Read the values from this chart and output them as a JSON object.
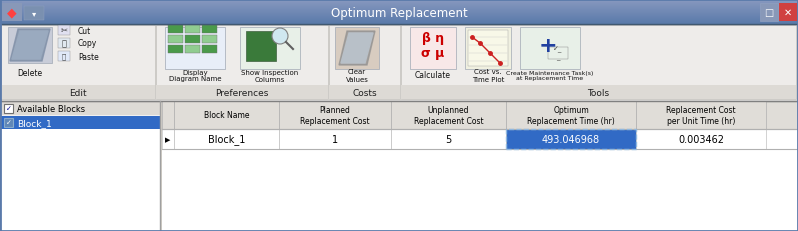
{
  "title": "Optimum Replacement",
  "title_bar_color_top": "#6a8fbf",
  "title_bar_color_bot": "#4a6ea0",
  "title_text_color": "#ffffff",
  "window_bg": "#d4d0c8",
  "ribbon_bg": "#e8e8e8",
  "edit_group_label": "Edit",
  "pref_group_label": "Preferences",
  "costs_group_label": "Costs",
  "tools_group_label": "Tools",
  "avail_blocks_label": "Available Blocks",
  "block1_label": "Block_1",
  "block1_selected_bg": "#316ac5",
  "block1_text_color": "#ffffff",
  "table_headers": [
    "Block Name",
    "Planned\nReplacement Cost",
    "Unplanned\nReplacement Cost",
    "Optimum\nReplacement Time (hr)",
    "Replacement Cost\nper Unit Time (hr)"
  ],
  "table_row": [
    "Block_1",
    "1",
    "5",
    "493.046968",
    "0.003462"
  ],
  "selected_cell_col": 3,
  "selected_cell_bg": "#316ac5",
  "selected_cell_text": "#ffffff",
  "table_bg": "#ffffff",
  "table_header_bg": "#e0ddd8",
  "header_text_color": "#000000",
  "group_bounds": [
    [
      1,
      155,
      "Edit"
    ],
    [
      156,
      328,
      "Preferences"
    ],
    [
      329,
      400,
      "Costs"
    ],
    [
      401,
      796,
      "Tools"
    ]
  ],
  "figsize": [
    7.98,
    2.32
  ],
  "dpi": 100
}
